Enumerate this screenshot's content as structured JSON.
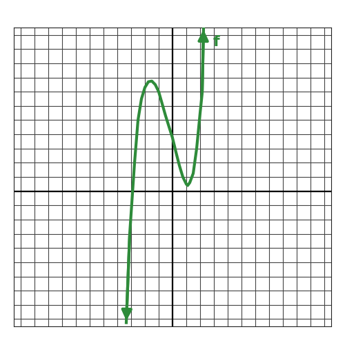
{
  "chart_data": {
    "type": "line",
    "series": [
      {
        "name": "f",
        "color": "#2e8b3a",
        "x": [
          -3.35,
          -3.1,
          -2.75,
          -2.5,
          -2.25,
          -2.0,
          -1.75,
          -1.5,
          -1.25,
          -1.0,
          -0.5,
          0.0,
          0.25,
          0.5,
          0.75,
          1.0,
          1.1,
          1.25,
          1.5,
          1.75,
          2.0,
          2.15,
          2.25
        ],
        "values": [
          -9.25,
          -3.0,
          2.0,
          5.0,
          6.5,
          7.3,
          7.7,
          7.75,
          7.5,
          7.0,
          5.3,
          3.75,
          2.75,
          1.8,
          1.0,
          0.5,
          0.4,
          0.6,
          1.25,
          3.0,
          5.5,
          6.9,
          11.5
        ]
      }
    ],
    "xlim": [
      -11.5,
      11.5
    ],
    "xticks": [
      -11,
      -10,
      -9,
      -8,
      -7,
      -6,
      -5,
      -4,
      -3,
      -2,
      -1,
      0,
      1,
      2,
      3,
      4,
      5,
      6,
      7,
      8,
      9,
      10,
      11
    ],
    "ylim": [
      -9.5,
      11.5
    ],
    "yticks": [
      -9,
      -8,
      -7,
      -6,
      -5,
      -4,
      -3,
      -2,
      -1,
      0,
      1,
      2,
      3,
      4,
      5,
      6,
      7,
      8,
      9,
      10,
      11
    ],
    "grid": true,
    "tick_labels": false
  }
}
